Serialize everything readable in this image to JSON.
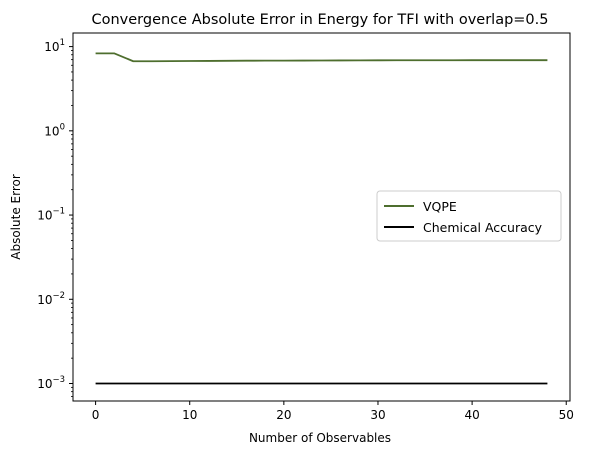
{
  "chart_data": {
    "type": "line",
    "title": "Convergence Absolute Error in Energy for TFI with overlap=0.5",
    "xlabel": "Number of Observables",
    "ylabel": "Absolute Error",
    "xlim": [
      -2.4,
      50.4
    ],
    "ylim": [
      0.00062,
      14.5
    ],
    "yscale": "log",
    "xticks": [
      0,
      10,
      20,
      30,
      40,
      50
    ],
    "xtick_labels": [
      "0",
      "10",
      "20",
      "30",
      "40",
      "50"
    ],
    "yticks": [
      {
        "value": 0.001,
        "base": "10",
        "exp": "−3"
      },
      {
        "value": 0.01,
        "base": "10",
        "exp": "−2"
      },
      {
        "value": 0.1,
        "base": "10",
        "exp": "−1"
      },
      {
        "value": 1,
        "base": "10",
        "exp": "0"
      },
      {
        "value": 10,
        "base": "10",
        "exp": "1"
      }
    ],
    "legend_position": "center-right",
    "grid": false,
    "series": [
      {
        "name": "VQPE",
        "color": "#4e6e2e",
        "x": [
          0,
          2,
          4,
          6,
          8,
          10,
          12,
          14,
          16,
          18,
          20,
          22,
          24,
          26,
          28,
          30,
          32,
          34,
          36,
          38,
          40,
          42,
          44,
          46,
          48
        ],
        "y": [
          8.3,
          8.3,
          6.7,
          6.7,
          6.72,
          6.74,
          6.76,
          6.78,
          6.8,
          6.81,
          6.82,
          6.83,
          6.84,
          6.85,
          6.86,
          6.87,
          6.88,
          6.88,
          6.89,
          6.89,
          6.9,
          6.9,
          6.9,
          6.9,
          6.9
        ]
      },
      {
        "name": "Chemical Accuracy",
        "color": "#000000",
        "x": [
          0,
          48
        ],
        "y": [
          0.001,
          0.001
        ]
      }
    ]
  }
}
